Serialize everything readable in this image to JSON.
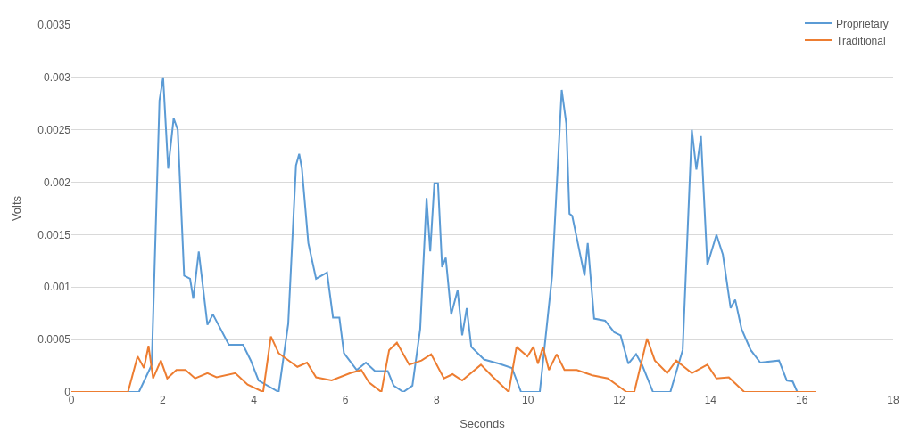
{
  "chart_data": {
    "type": "line",
    "xlabel": "Seconds",
    "ylabel": "Volts",
    "xlim": [
      0,
      18
    ],
    "xticks": [
      0,
      2,
      4,
      6,
      8,
      10,
      12,
      14,
      16,
      18
    ],
    "ylim": [
      0,
      0.0035
    ],
    "yticks": [
      0,
      0.0005,
      0.001,
      0.0015,
      0.002,
      0.0025,
      0.003,
      0.0035
    ],
    "grid": "y",
    "legend": "top right",
    "marker": "none",
    "line_style": "solid",
    "series": [
      {
        "name": "Proprietary",
        "color": "#5b9bd5",
        "x": [
          0,
          1.48,
          1.76,
          1.93,
          2.01,
          2.12,
          2.24,
          2.33,
          2.47,
          2.6,
          2.67,
          2.79,
          2.98,
          3.1,
          3.45,
          3.76,
          3.93,
          4.1,
          4.54,
          4.75,
          4.92,
          4.99,
          5.05,
          5.19,
          5.36,
          5.6,
          5.73,
          5.87,
          5.97,
          6.04,
          6.25,
          6.45,
          6.65,
          6.93,
          7.06,
          7.27,
          7.47,
          7.64,
          7.78,
          7.86,
          7.95,
          8.03,
          8.12,
          8.2,
          8.32,
          8.46,
          8.56,
          8.66,
          8.76,
          9.04,
          9.37,
          9.65,
          9.85,
          10.26,
          10.53,
          10.74,
          10.84,
          10.91,
          10.97,
          11.24,
          11.31,
          11.45,
          11.69,
          11.89,
          12.03,
          12.2,
          12.37,
          12.5,
          12.74,
          13.12,
          13.39,
          13.59,
          13.69,
          13.79,
          13.93,
          14.13,
          14.27,
          14.44,
          14.54,
          14.68,
          14.88,
          15.09,
          15.5,
          15.67,
          15.8,
          15.9,
          16.28
        ],
        "values": [
          0,
          0,
          0.00026,
          0.00278,
          0.003,
          0.00213,
          0.00261,
          0.0025,
          0.00111,
          0.00108,
          0.00089,
          0.00134,
          0.00064,
          0.00074,
          0.00045,
          0.00045,
          0.0003,
          0.00011,
          0,
          0.00065,
          0.00216,
          0.00227,
          0.00213,
          0.00142,
          0.00108,
          0.00114,
          0.00071,
          0.00071,
          0.00037,
          0.00033,
          0.00021,
          0.00028,
          0.0002,
          0.0002,
          6e-05,
          0,
          6e-05,
          0.0006,
          0.00185,
          0.00134,
          0.00199,
          0.00199,
          0.00119,
          0.00128,
          0.00074,
          0.00097,
          0.00054,
          0.0008,
          0.00043,
          0.00031,
          0.00027,
          0.00023,
          0,
          0,
          0.00111,
          0.00288,
          0.00256,
          0.0017,
          0.00168,
          0.00111,
          0.00142,
          0.0007,
          0.00068,
          0.00057,
          0.00054,
          0.00027,
          0.00036,
          0.00026,
          0,
          0,
          0.0004,
          0.0025,
          0.00212,
          0.00244,
          0.00121,
          0.0015,
          0.00131,
          0.0008,
          0.00088,
          0.0006,
          0.0004,
          0.00028,
          0.0003,
          0.00011,
          0.0001,
          0,
          0
        ]
      },
      {
        "name": "Traditional",
        "color": "#ed7d31",
        "x": [
          0,
          0.6,
          1.24,
          1.45,
          1.59,
          1.69,
          1.79,
          1.96,
          2.1,
          2.3,
          2.5,
          2.71,
          2.98,
          3.18,
          3.59,
          3.86,
          4.2,
          4.37,
          4.54,
          4.95,
          5.16,
          5.36,
          5.7,
          6.11,
          6.35,
          6.52,
          6.79,
          6.96,
          7.13,
          7.4,
          7.67,
          7.88,
          8.16,
          8.35,
          8.56,
          8.97,
          9.24,
          9.58,
          9.75,
          9.99,
          10.12,
          10.22,
          10.33,
          10.46,
          10.63,
          10.8,
          11.07,
          11.41,
          11.75,
          12.16,
          12.33,
          12.61,
          12.78,
          13.05,
          13.25,
          13.59,
          13.93,
          14.13,
          14.4,
          14.74,
          15.29,
          16.3
        ],
        "values": [
          0,
          0,
          0,
          0.00034,
          0.00023,
          0.00044,
          0.00013,
          0.0003,
          0.00013,
          0.00021,
          0.00021,
          0.00013,
          0.00018,
          0.00014,
          0.00018,
          7e-05,
          0,
          0.00053,
          0.00037,
          0.00024,
          0.00028,
          0.00014,
          0.00011,
          0.00018,
          0.00021,
          9e-05,
          0,
          0.0004,
          0.00047,
          0.00026,
          0.0003,
          0.00036,
          0.00013,
          0.00017,
          0.00011,
          0.00026,
          0.00014,
          0,
          0.00043,
          0.00034,
          0.00043,
          0.00027,
          0.00043,
          0.00021,
          0.00036,
          0.00021,
          0.00021,
          0.00016,
          0.00013,
          0,
          0,
          0.00051,
          0.0003,
          0.00018,
          0.0003,
          0.00018,
          0.00026,
          0.00013,
          0.00014,
          0,
          0,
          0
        ]
      }
    ]
  }
}
